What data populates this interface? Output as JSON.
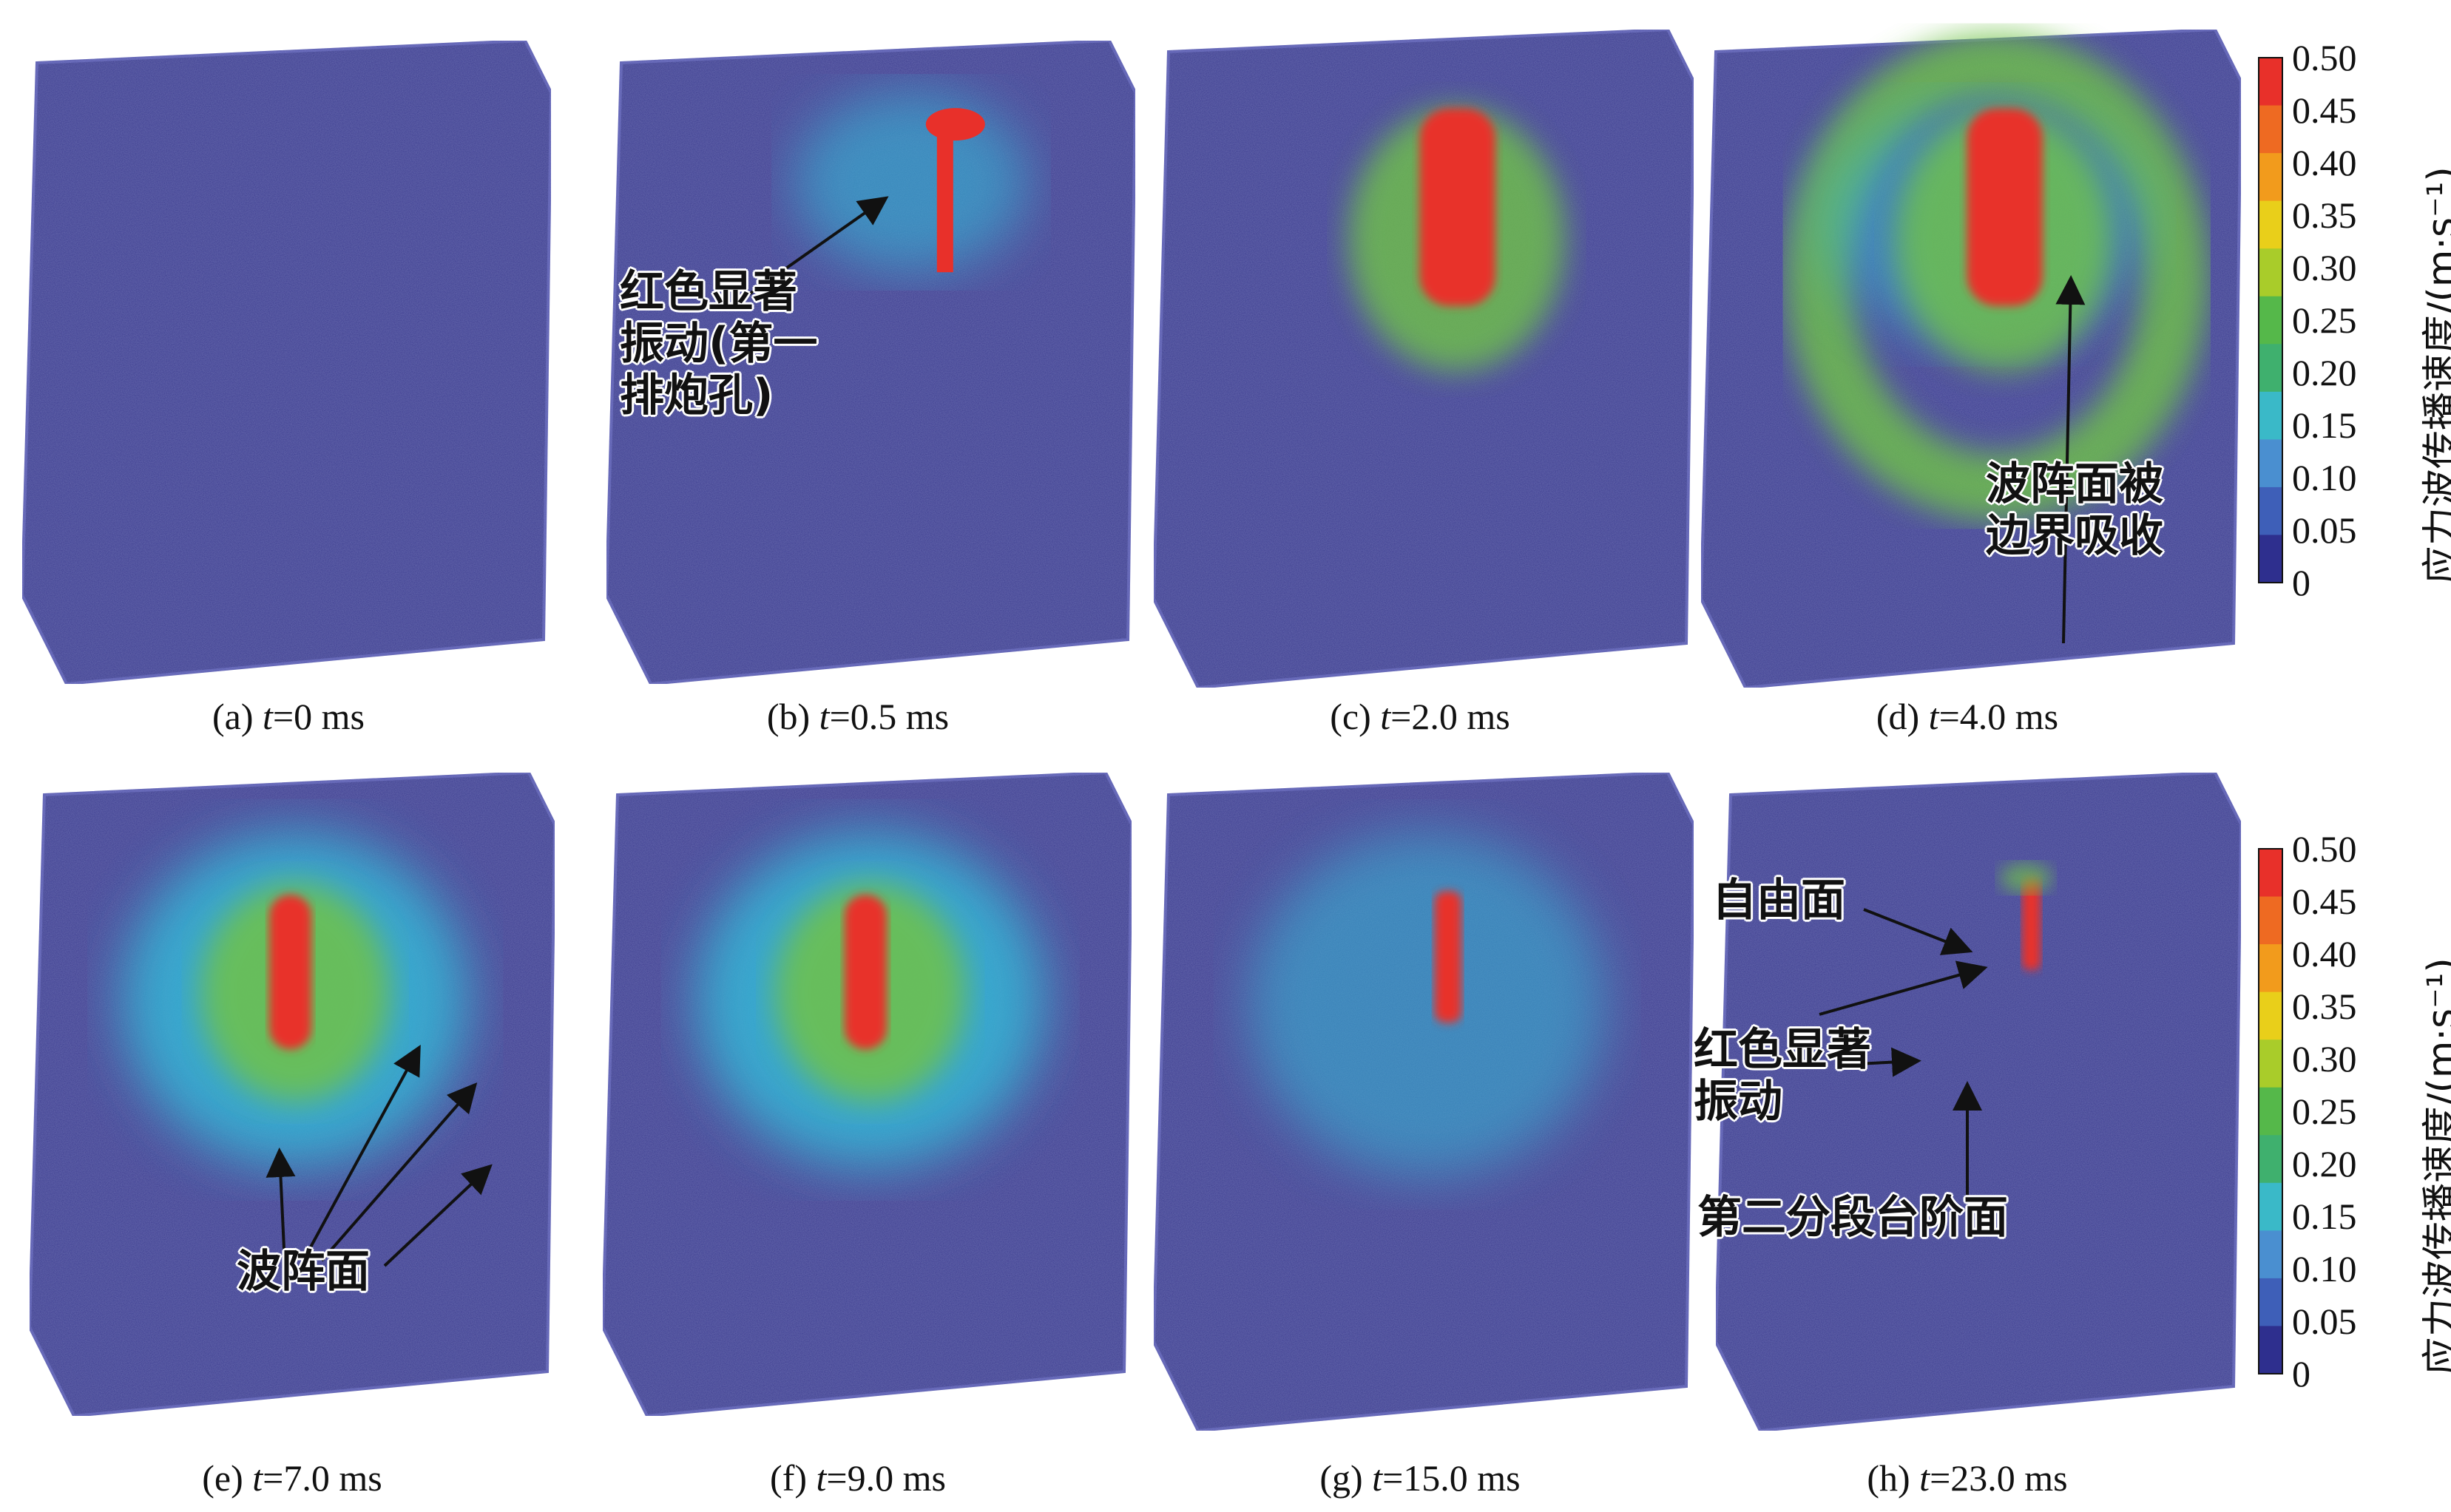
{
  "panels": [
    {
      "id": "a",
      "prefix": "(a) ",
      "var": "t",
      "value": "=0 ms",
      "blobs": []
    },
    {
      "id": "b",
      "prefix": "(b) ",
      "var": "t",
      "value": "=0.5 ms",
      "blobs": [
        "spot"
      ]
    },
    {
      "id": "c",
      "prefix": "(c) ",
      "var": "t",
      "value": "=2.0 ms",
      "blobs": [
        "core-large"
      ]
    },
    {
      "id": "d",
      "prefix": "(d) ",
      "var": "t",
      "value": "=4.0 ms",
      "blobs": [
        "core-large",
        "ring"
      ]
    },
    {
      "id": "e",
      "prefix": "(e) ",
      "var": "t",
      "value": "=7.0 ms",
      "blobs": [
        "core-mid",
        "halo"
      ]
    },
    {
      "id": "f",
      "prefix": "(f) ",
      "var": "t",
      "value": "=9.0 ms",
      "blobs": [
        "core-mid",
        "halo"
      ]
    },
    {
      "id": "g",
      "prefix": "(g) ",
      "var": "t",
      "value": "=15.0 ms",
      "blobs": [
        "core-small",
        "halo-faint"
      ]
    },
    {
      "id": "h",
      "prefix": "(h) ",
      "var": "t",
      "value": "=23.0 ms",
      "blobs": [
        "core-tiny"
      ]
    }
  ],
  "colorbar": {
    "title": "应力波传播速度/(m·s⁻¹)",
    "ticks": [
      "0.50",
      "0.45",
      "0.40",
      "0.35",
      "0.30",
      "0.25",
      "0.20",
      "0.15",
      "0.10",
      "0.05",
      "0"
    ],
    "colors": [
      "#e8302a",
      "#ee6a22",
      "#f29b1c",
      "#e9cf1a",
      "#a9cc2a",
      "#55b84a",
      "#3fb06e",
      "#3ab9c8",
      "#4a8fd0",
      "#3e5fb8",
      "#2e2f8e"
    ]
  },
  "annotations": {
    "b_label": [
      "红色显著",
      "振动(第一",
      "排炮孔)"
    ],
    "d_label": [
      "波阵面被",
      "边界吸收"
    ],
    "e_label": "波阵面",
    "h_free": "自由面",
    "h_vib": [
      "红色显著",
      "振动"
    ],
    "h_step": "第二分段台阶面"
  },
  "colors": {
    "cube_base": "#3a3b8f",
    "cube_edge": "#5a5cb0",
    "red": "#e8302a",
    "green": "#6fc24a",
    "cyan": "#35b6d6"
  }
}
